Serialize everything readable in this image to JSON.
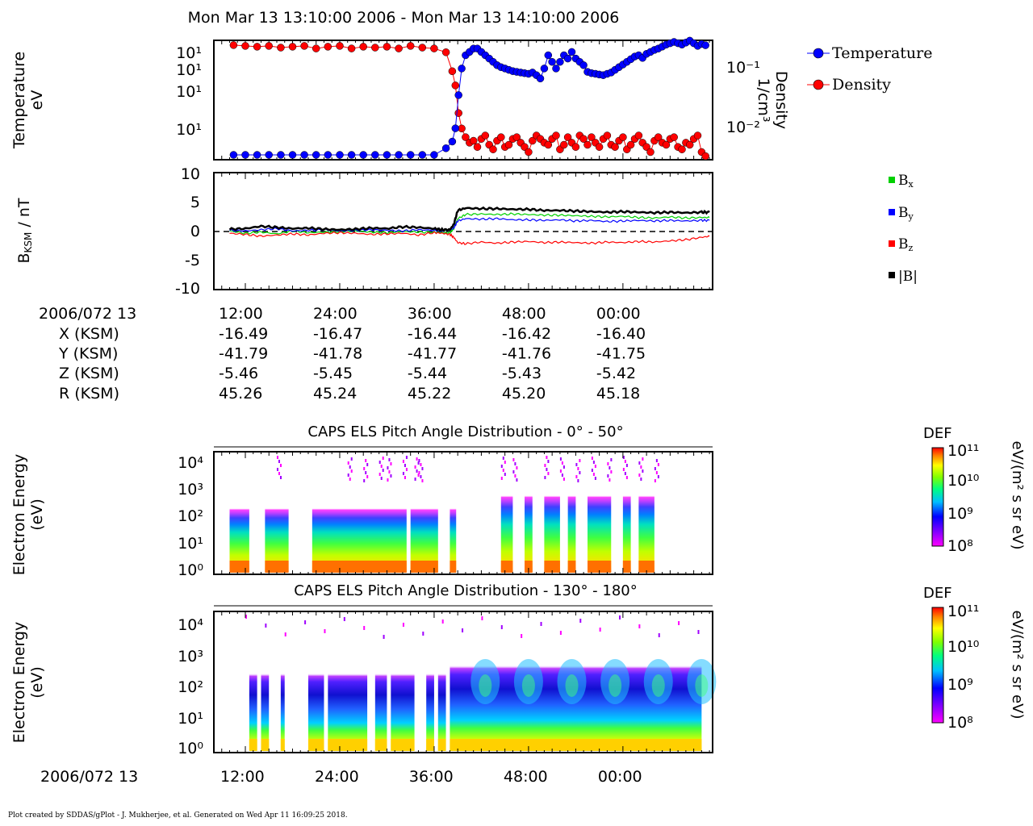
{
  "header": {
    "title": "Mon Mar 13 13:10:00 2006 - Mon Mar 13 14:10:00 2006"
  },
  "footer": {
    "text": "Plot created by SDDAS/gPlot - J. Mukherjee, et al.  Generated on Wed Apr 11 16:09:25 2018."
  },
  "colors": {
    "temperature": "#0000ff",
    "density": "#ff0000",
    "bx": "#00d000",
    "by": "#0000ff",
    "bz": "#ff0000",
    "btotal": "#000000"
  },
  "ephemeris": {
    "date_label": "2006/072 13",
    "rows": [
      {
        "label": "X (KSM)",
        "values": [
          "-16.49",
          "-16.47",
          "-16.44",
          "-16.42",
          "-16.40"
        ]
      },
      {
        "label": "Y (KSM)",
        "values": [
          "-41.79",
          "-41.78",
          "-41.77",
          "-41.76",
          "-41.75"
        ]
      },
      {
        "label": "Z (KSM)",
        "values": [
          "-5.46",
          "-5.45",
          "-5.44",
          "-5.43",
          "-5.42"
        ]
      },
      {
        "label": "R (KSM)",
        "values": [
          "45.26",
          "45.24",
          "45.22",
          "45.20",
          "45.18"
        ]
      }
    ]
  },
  "chart_data": [
    {
      "type": "scatter",
      "ylabel": "Temperature\neV",
      "y2label": "Density\n1/cm³",
      "ytick_labels": [
        "10¹",
        "10¹",
        "10¹",
        "10¹"
      ],
      "y2tick_labels": [
        "10⁻¹",
        "10⁻²"
      ],
      "y2lim": [
        0.0045,
        0.2
      ],
      "y2log": true,
      "legend": [
        "Temperature",
        "Density"
      ],
      "legend_position": "right-outside",
      "series": [
        {
          "name": "Temperature",
          "color": "#0000ff",
          "marker": "circle",
          "x": [
            10.5,
            12,
            13.5,
            15,
            16.5,
            18,
            19.5,
            21,
            22.5,
            24,
            25.5,
            27,
            28.5,
            30,
            31.5,
            33,
            34.5,
            36,
            37.5,
            38.3,
            38.7,
            39.1,
            39.5,
            40,
            40.5,
            41,
            41.5,
            42,
            42.5,
            43,
            43.5,
            44,
            44.5,
            45,
            45.5,
            46,
            46.5,
            47,
            47.5,
            48,
            48.5,
            49,
            49.5,
            50,
            50.5,
            51,
            51.5,
            52,
            52.5,
            53,
            53.5,
            54,
            54.5,
            55,
            55.5,
            56,
            56.5,
            57,
            57.5,
            58,
            58.5,
            59,
            59.5,
            60,
            60.5,
            61,
            61.5,
            62,
            62.5,
            63,
            63.5,
            64,
            64.5,
            65,
            65.5,
            66,
            66.5,
            67,
            67.5,
            68,
            68.5,
            69,
            69.5,
            70,
            70.5
          ],
          "y": [
            2,
            2,
            2,
            2,
            2,
            2,
            2,
            2,
            2,
            2,
            2,
            2,
            2,
            2,
            2,
            2,
            2,
            2,
            3,
            4,
            6,
            11,
            15,
            17,
            17.5,
            18,
            18,
            17.5,
            17,
            16.5,
            16,
            15.5,
            15.2,
            15,
            14.8,
            14.6,
            14.5,
            14.4,
            14.3,
            14.2,
            14.4,
            14,
            13.5,
            15,
            17,
            16,
            15,
            16,
            17,
            16.5,
            17.5,
            16.5,
            16,
            15.5,
            14.5,
            14.3,
            14.2,
            14.1,
            14,
            14.2,
            14.4,
            14.8,
            15.2,
            15.6,
            16,
            16.4,
            16.8,
            17,
            16.6,
            17.2,
            17.5,
            17.8,
            18,
            18.3,
            18.6,
            18.8,
            19,
            18.8,
            18.6,
            18.9,
            19.2,
            18.8,
            18.4,
            18.7,
            18.5
          ]
        },
        {
          "name": "Density",
          "color": "#ff0000",
          "marker": "circle",
          "x": [
            10.5,
            12,
            13.5,
            15,
            16.5,
            18,
            19.5,
            21,
            22.5,
            24,
            25.5,
            27,
            28.5,
            30,
            31.5,
            33,
            34.5,
            36,
            37.5,
            38.3,
            38.7,
            39.1,
            39.5,
            40,
            40.5,
            41,
            41.5,
            42,
            42.5,
            43,
            43.5,
            44,
            44.5,
            45,
            45.5,
            46,
            46.5,
            47,
            47.5,
            48,
            48.5,
            49,
            49.5,
            50,
            50.5,
            51,
            51.5,
            52,
            52.5,
            53,
            53.5,
            54,
            54.5,
            55,
            55.5,
            56,
            56.5,
            57,
            57.5,
            58,
            58.5,
            59,
            59.5,
            60,
            60.5,
            61,
            61.5,
            62,
            62.5,
            63,
            63.5,
            64,
            64.5,
            65,
            65.5,
            66,
            66.5,
            67,
            67.5,
            68,
            68.5,
            69,
            69.5,
            70,
            70.5
          ],
          "y": [
            0.19,
            0.185,
            0.18,
            0.185,
            0.175,
            0.18,
            0.185,
            0.17,
            0.18,
            0.185,
            0.17,
            0.18,
            0.175,
            0.18,
            0.17,
            0.185,
            0.175,
            0.17,
            0.15,
            0.08,
            0.05,
            0.02,
            0.012,
            0.009,
            0.0075,
            0.008,
            0.0065,
            0.0085,
            0.0095,
            0.007,
            0.006,
            0.008,
            0.009,
            0.0065,
            0.007,
            0.0085,
            0.009,
            0.0075,
            0.0065,
            0.0055,
            0.008,
            0.0095,
            0.0085,
            0.0075,
            0.007,
            0.0085,
            0.0095,
            0.006,
            0.007,
            0.009,
            0.0075,
            0.0065,
            0.0095,
            0.0085,
            0.007,
            0.009,
            0.0075,
            0.0065,
            0.0085,
            0.0095,
            0.007,
            0.0065,
            0.008,
            0.009,
            0.006,
            0.007,
            0.0085,
            0.0095,
            0.0075,
            0.0065,
            0.0055,
            0.008,
            0.009,
            0.0075,
            0.007,
            0.0085,
            0.009,
            0.0065,
            0.006,
            0.0075,
            0.007,
            0.0085,
            0.0095,
            0.0055,
            0.0048
          ]
        }
      ]
    },
    {
      "type": "line",
      "ylabel": "B_KSM / nT",
      "ylim": [
        -10,
        10
      ],
      "ytick_labels": [
        "10",
        "5",
        "0",
        "-5",
        "-10"
      ],
      "legend": [
        "Bx",
        "By",
        "Bz",
        "|B|"
      ],
      "legend_position": "right-outside",
      "series": [
        {
          "name": "Bx",
          "color": "#00d000",
          "x": [
            10,
            12,
            14,
            16,
            18,
            20,
            22,
            24,
            26,
            28,
            30,
            32,
            34,
            36,
            37,
            38,
            38.5,
            39,
            40,
            42,
            44,
            46,
            48,
            50,
            52,
            54,
            56,
            58,
            60,
            62,
            64,
            66,
            68,
            70,
            71
          ],
          "y": [
            0.1,
            -0.3,
            -0.1,
            -0.4,
            0.1,
            -0.2,
            -0.1,
            0,
            0.1,
            -0.1,
            -0.2,
            0,
            -0.1,
            -0.1,
            -0.2,
            -0.2,
            0.5,
            2.2,
            2.9,
            3,
            2.9,
            3,
            2.9,
            2.8,
            2.8,
            2.7,
            2.6,
            2.5,
            2.6,
            2.4,
            2.3,
            2.5,
            2.3,
            2.4,
            2.4
          ]
        },
        {
          "name": "By",
          "color": "#0000ff",
          "x": [
            10,
            12,
            14,
            16,
            18,
            20,
            22,
            24,
            26,
            28,
            30,
            32,
            34,
            36,
            37,
            38,
            38.5,
            39,
            40,
            42,
            44,
            46,
            48,
            50,
            52,
            54,
            56,
            58,
            60,
            62,
            64,
            66,
            68,
            70,
            71
          ],
          "y": [
            0.2,
            0.1,
            0.3,
            0.5,
            0.1,
            0.2,
            0.3,
            0.1,
            0.2,
            0.3,
            0.2,
            0.1,
            0.3,
            0.2,
            0.1,
            0.2,
            0.6,
            1.8,
            2.2,
            2.1,
            2.2,
            2,
            2,
            1.9,
            2,
            1.8,
            1.9,
            1.7,
            1.8,
            1.9,
            1.8,
            1.9,
            1.8,
            1.9,
            1.9
          ]
        },
        {
          "name": "Bz",
          "color": "#ff0000",
          "x": [
            10,
            12,
            14,
            16,
            18,
            20,
            22,
            24,
            26,
            28,
            30,
            32,
            34,
            36,
            37,
            38,
            38.5,
            39,
            40,
            42,
            44,
            46,
            48,
            50,
            52,
            54,
            56,
            58,
            60,
            62,
            64,
            66,
            68,
            70,
            71
          ],
          "y": [
            -0.3,
            -0.5,
            -0.8,
            -0.6,
            -0.4,
            -0.6,
            -0.3,
            -0.2,
            -0.3,
            -0.5,
            -0.4,
            -0.3,
            -0.6,
            -0.2,
            -0.3,
            -0.5,
            -1,
            -1.9,
            -2.1,
            -1.8,
            -2,
            -1.8,
            -1.7,
            -1.9,
            -1.8,
            -1.9,
            -2,
            -1.8,
            -1.9,
            -1.7,
            -1.8,
            -1.6,
            -1.4,
            -1,
            -0.8
          ]
        },
        {
          "name": "|B|",
          "color": "#000000",
          "x": [
            10,
            12,
            14,
            16,
            18,
            20,
            22,
            24,
            26,
            28,
            30,
            32,
            34,
            36,
            37,
            38,
            38.5,
            39,
            40,
            42,
            44,
            46,
            48,
            50,
            52,
            54,
            56,
            58,
            60,
            62,
            64,
            66,
            68,
            70,
            71
          ],
          "y": [
            0.4,
            0.5,
            0.9,
            0.7,
            0.5,
            0.6,
            0.4,
            0.3,
            0.4,
            0.6,
            0.5,
            0.8,
            0.7,
            0.5,
            0.3,
            0.3,
            1.2,
            3.6,
            4,
            3.9,
            3.9,
            3.8,
            3.8,
            3.6,
            3.6,
            3.5,
            3.4,
            3.3,
            3.4,
            3.3,
            3.2,
            3.3,
            3.2,
            3.3,
            3.3
          ]
        }
      ]
    },
    {
      "type": "heatmap",
      "title": "CAPS ELS Pitch Angle Distribution - 0° - 50°",
      "ylabel": "Electron Energy\n(eV)",
      "ytick_labels": [
        "10⁰",
        "10¹",
        "10²",
        "10³",
        "10⁴"
      ],
      "colorbar": {
        "title": "DEF",
        "unit": "eV/(m² s sr eV)",
        "tick_labels": [
          "10¹¹",
          "10¹⁰",
          "10⁹",
          "10⁸"
        ]
      },
      "active_intervals_min": [
        [
          10,
          12.5
        ],
        [
          14.5,
          17.5
        ],
        [
          20.5,
          32.5
        ],
        [
          33,
          36.5
        ],
        [
          38,
          38.8
        ],
        [
          44.5,
          46
        ],
        [
          47.5,
          48.5
        ],
        [
          50,
          52
        ],
        [
          53,
          54
        ],
        [
          55.5,
          58.5
        ],
        [
          60,
          61
        ],
        [
          62,
          64
        ]
      ],
      "spikes_min": [
        16,
        25,
        27,
        29,
        30,
        32,
        33.5,
        34,
        44.5,
        46,
        50,
        52,
        54,
        56,
        58,
        60,
        62,
        64
      ]
    },
    {
      "type": "heatmap",
      "title": "CAPS ELS Pitch Angle Distribution - 130° - 180°",
      "ylabel": "Electron Energy\n(eV)",
      "ytick_labels": [
        "10⁰",
        "10¹",
        "10²",
        "10³",
        "10⁴"
      ],
      "colorbar": {
        "title": "DEF",
        "unit": "eV/(m² s sr eV)",
        "tick_labels": [
          "10¹¹",
          "10¹⁰",
          "10⁹",
          "10⁸"
        ]
      },
      "active_intervals_min": [
        [
          12.5,
          13.5
        ],
        [
          14,
          15
        ],
        [
          16.5,
          17
        ],
        [
          20,
          22
        ],
        [
          22.5,
          27.5
        ],
        [
          28.5,
          30
        ],
        [
          30.5,
          33.5
        ],
        [
          35,
          36
        ],
        [
          36.5,
          37.5
        ],
        [
          38,
          70
        ]
      ],
      "x_tick_labels": [
        "12:00",
        "24:00",
        "36:00",
        "48:00",
        "00:00"
      ],
      "x_date_label": "2006/072 13"
    }
  ]
}
